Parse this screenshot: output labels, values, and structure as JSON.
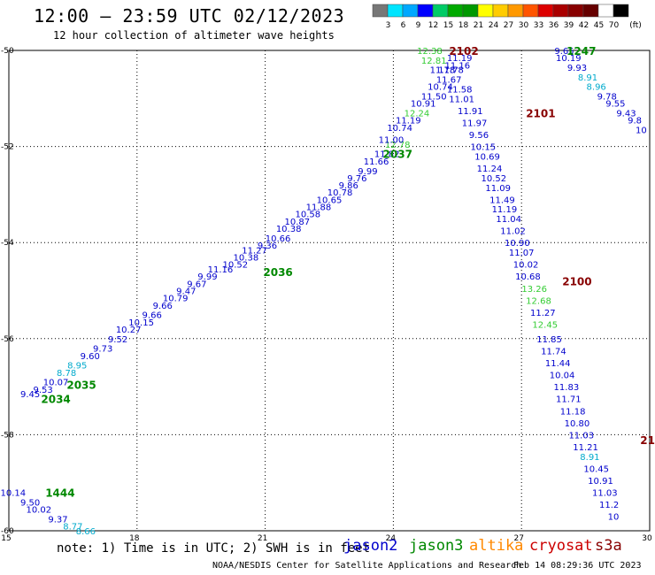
{
  "header": {
    "title": "12:00 – 23:59 UTC 02/12/2023",
    "subtitle": "12 hour collection of altimeter wave heights"
  },
  "colorbar": {
    "unit": "(ft)",
    "ticks": [
      "3",
      "6",
      "9",
      "12",
      "15",
      "18",
      "21",
      "24",
      "27",
      "30",
      "33",
      "36",
      "39",
      "42",
      "45",
      "70"
    ],
    "colors": [
      "#777777",
      "#00e5ff",
      "#00a8ff",
      "#0000ff",
      "#00cc66",
      "#00aa00",
      "#009900",
      "#ffff00",
      "#ffcc00",
      "#ff9900",
      "#ff5500",
      "#dd0000",
      "#aa0000",
      "#880000",
      "#660000",
      "#ffffff",
      "#000000"
    ]
  },
  "axes": {
    "x_ticks": [
      "15",
      "18",
      "21",
      "24",
      "27",
      "30"
    ],
    "y_ticks": [
      "-50",
      "-52",
      "-54",
      "-56",
      "-58",
      "-60"
    ]
  },
  "footer": {
    "note": "note: 1) Time is in UTC; 2) SWH is in feet",
    "satellites": [
      "jason2",
      "jason3",
      "altika",
      "cryosat",
      "s3a"
    ],
    "credit": "NOAA/NESDIS Center for Satellite Applications and Research",
    "timestamp": "Feb 14 08:29:36 UTC 2023"
  },
  "map": {
    "time_labels": [
      {
        "text": "2102",
        "x": 25.65,
        "y": -50.0,
        "color": "#880000"
      },
      {
        "text": "2101",
        "x": 27.45,
        "y": -51.3,
        "color": "#880000"
      },
      {
        "text": "2100",
        "x": 28.3,
        "y": -54.8,
        "color": "#880000"
      },
      {
        "text": "1247",
        "x": 28.4,
        "y": -50.0,
        "color": "#008800"
      },
      {
        "text": "2037",
        "x": 24.1,
        "y": -52.15,
        "color": "#008800"
      },
      {
        "text": "2036",
        "x": 21.3,
        "y": -54.6,
        "color": "#008800"
      },
      {
        "text": "2035",
        "x": 16.7,
        "y": -56.95,
        "color": "#008800"
      },
      {
        "text": "2034",
        "x": 16.1,
        "y": -57.25,
        "color": "#008800"
      },
      {
        "text": "1444",
        "x": 16.2,
        "y": -59.2,
        "color": "#008800"
      },
      {
        "text": "21",
        "x": 29.95,
        "y": -58.1,
        "color": "#880000"
      }
    ],
    "points": [
      {
        "v": "9.45",
        "x": 15.5,
        "y": -57.15,
        "c": "#0000cc"
      },
      {
        "v": "9.53",
        "x": 15.8,
        "y": -57.05,
        "c": "#0000cc"
      },
      {
        "v": "10.07",
        "x": 16.1,
        "y": -56.9,
        "c": "#0000cc"
      },
      {
        "v": "8.78",
        "x": 16.35,
        "y": -56.7,
        "c": "#00aacc"
      },
      {
        "v": "8.95",
        "x": 16.6,
        "y": -56.55,
        "c": "#00aacc"
      },
      {
        "v": "9.60",
        "x": 16.9,
        "y": -56.35,
        "c": "#0000cc"
      },
      {
        "v": "9.73",
        "x": 17.2,
        "y": -56.2,
        "c": "#0000cc"
      },
      {
        "v": "9.52",
        "x": 17.55,
        "y": -56.0,
        "c": "#0000cc"
      },
      {
        "v": "10.27",
        "x": 17.8,
        "y": -55.8,
        "c": "#0000cc"
      },
      {
        "v": "10.15",
        "x": 18.1,
        "y": -55.65,
        "c": "#0000cc"
      },
      {
        "v": "9.66",
        "x": 18.35,
        "y": -55.5,
        "c": "#0000cc"
      },
      {
        "v": "9.66",
        "x": 18.6,
        "y": -55.3,
        "c": "#0000cc"
      },
      {
        "v": "10.79",
        "x": 18.9,
        "y": -55.15,
        "c": "#0000cc"
      },
      {
        "v": "9.47",
        "x": 19.15,
        "y": -55.0,
        "c": "#0000cc"
      },
      {
        "v": "9.67",
        "x": 19.4,
        "y": -54.85,
        "c": "#0000cc"
      },
      {
        "v": "9.99",
        "x": 19.65,
        "y": -54.7,
        "c": "#0000cc"
      },
      {
        "v": "11.16",
        "x": 19.95,
        "y": -54.55,
        "c": "#0000cc"
      },
      {
        "v": "10.52",
        "x": 20.3,
        "y": -54.45,
        "c": "#0000cc"
      },
      {
        "v": "10.38",
        "x": 20.55,
        "y": -54.3,
        "c": "#0000cc"
      },
      {
        "v": "11.27",
        "x": 20.75,
        "y": -54.15,
        "c": "#0000cc"
      },
      {
        "v": "9.36",
        "x": 21.05,
        "y": -54.05,
        "c": "#0000cc"
      },
      {
        "v": "10.66",
        "x": 21.3,
        "y": -53.9,
        "c": "#0000cc"
      },
      {
        "v": "10.38",
        "x": 21.55,
        "y": -53.7,
        "c": "#0000cc"
      },
      {
        "v": "10.87",
        "x": 21.75,
        "y": -53.55,
        "c": "#0000cc"
      },
      {
        "v": "10.58",
        "x": 22.0,
        "y": -53.4,
        "c": "#0000cc"
      },
      {
        "v": "11.88",
        "x": 22.25,
        "y": -53.25,
        "c": "#0000cc"
      },
      {
        "v": "10.65",
        "x": 22.5,
        "y": -53.1,
        "c": "#0000cc"
      },
      {
        "v": "10.78",
        "x": 22.75,
        "y": -52.95,
        "c": "#0000cc"
      },
      {
        "v": "9.86",
        "x": 22.95,
        "y": -52.8,
        "c": "#0000cc"
      },
      {
        "v": "9.76",
        "x": 23.15,
        "y": -52.65,
        "c": "#0000cc"
      },
      {
        "v": "9.99",
        "x": 23.4,
        "y": -52.5,
        "c": "#0000cc"
      },
      {
        "v": "11.66",
        "x": 23.6,
        "y": -52.3,
        "c": "#0000cc"
      },
      {
        "v": "11.82",
        "x": 23.85,
        "y": -52.15,
        "c": "#0000cc"
      },
      {
        "v": "12.78",
        "x": 24.1,
        "y": -51.95,
        "c": "#33cc33"
      },
      {
        "v": "11.00",
        "x": 23.95,
        "y": -51.85,
        "c": "#0000cc"
      },
      {
        "v": "10.74",
        "x": 24.15,
        "y": -51.6,
        "c": "#0000cc"
      },
      {
        "v": "11.19",
        "x": 24.35,
        "y": -51.45,
        "c": "#0000cc"
      },
      {
        "v": "12.24",
        "x": 24.55,
        "y": -51.3,
        "c": "#33cc33"
      },
      {
        "v": "10.91",
        "x": 24.7,
        "y": -51.1,
        "c": "#0000cc"
      },
      {
        "v": "11.50",
        "x": 24.95,
        "y": -50.95,
        "c": "#0000cc"
      },
      {
        "v": "10.74",
        "x": 25.1,
        "y": -50.75,
        "c": "#0000cc"
      },
      {
        "v": "11.67",
        "x": 25.3,
        "y": -50.6,
        "c": "#0000cc"
      },
      {
        "v": "11.78",
        "x": 25.35,
        "y": -50.4,
        "c": "#0000cc"
      },
      {
        "v": "11.78",
        "x": 25.15,
        "y": -50.4,
        "c": "#0000cc"
      },
      {
        "v": "12.81",
        "x": 24.95,
        "y": -50.2,
        "c": "#33cc33"
      },
      {
        "v": "12.38",
        "x": 24.85,
        "y": -50.0,
        "c": "#33cc33"
      },
      {
        "v": "11.16",
        "x": 25.5,
        "y": -50.3,
        "c": "#0000cc"
      },
      {
        "v": "11.19",
        "x": 25.55,
        "y": -50.15,
        "c": "#0000cc"
      },
      {
        "v": "11.58",
        "x": 25.55,
        "y": -50.8,
        "c": "#0000cc"
      },
      {
        "v": "11.01",
        "x": 25.6,
        "y": -51.0,
        "c": "#0000cc"
      },
      {
        "v": "11.91",
        "x": 25.8,
        "y": -51.25,
        "c": "#0000cc"
      },
      {
        "v": "11.97",
        "x": 25.9,
        "y": -51.5,
        "c": "#0000cc"
      },
      {
        "v": "9.56",
        "x": 26.0,
        "y": -51.75,
        "c": "#0000cc"
      },
      {
        "v": "10.15",
        "x": 26.1,
        "y": -52.0,
        "c": "#0000cc"
      },
      {
        "v": "10.69",
        "x": 26.2,
        "y": -52.2,
        "c": "#0000cc"
      },
      {
        "v": "11.24",
        "x": 26.25,
        "y": -52.45,
        "c": "#0000cc"
      },
      {
        "v": "10.52",
        "x": 26.35,
        "y": -52.65,
        "c": "#0000cc"
      },
      {
        "v": "11.09",
        "x": 26.45,
        "y": -52.85,
        "c": "#0000cc"
      },
      {
        "v": "11.49",
        "x": 26.55,
        "y": -53.1,
        "c": "#0000cc"
      },
      {
        "v": "11.19",
        "x": 26.6,
        "y": -53.3,
        "c": "#0000cc"
      },
      {
        "v": "11.04",
        "x": 26.7,
        "y": -53.5,
        "c": "#0000cc"
      },
      {
        "v": "11.02",
        "x": 26.8,
        "y": -53.75,
        "c": "#0000cc"
      },
      {
        "v": "10.90",
        "x": 26.9,
        "y": -54.0,
        "c": "#0000cc"
      },
      {
        "v": "11.07",
        "x": 27.0,
        "y": -54.2,
        "c": "#0000cc"
      },
      {
        "v": "10.02",
        "x": 27.1,
        "y": -54.45,
        "c": "#0000cc"
      },
      {
        "v": "10.68",
        "x": 27.15,
        "y": -54.7,
        "c": "#0000cc"
      },
      {
        "v": "13.26",
        "x": 27.3,
        "y": -54.95,
        "c": "#33cc33"
      },
      {
        "v": "12.68",
        "x": 27.4,
        "y": -55.2,
        "c": "#33cc33"
      },
      {
        "v": "11.27",
        "x": 27.5,
        "y": -55.45,
        "c": "#0000cc"
      },
      {
        "v": "12.45",
        "x": 27.55,
        "y": -55.7,
        "c": "#33cc33"
      },
      {
        "v": "11.85",
        "x": 27.65,
        "y": -56.0,
        "c": "#0000cc"
      },
      {
        "v": "11.74",
        "x": 27.75,
        "y": -56.25,
        "c": "#0000cc"
      },
      {
        "v": "11.44",
        "x": 27.85,
        "y": -56.5,
        "c": "#0000cc"
      },
      {
        "v": "10.04",
        "x": 27.95,
        "y": -56.75,
        "c": "#0000cc"
      },
      {
        "v": "11.83",
        "x": 28.05,
        "y": -57.0,
        "c": "#0000cc"
      },
      {
        "v": "11.71",
        "x": 28.1,
        "y": -57.25,
        "c": "#0000cc"
      },
      {
        "v": "11.18",
        "x": 28.2,
        "y": -57.5,
        "c": "#0000cc"
      },
      {
        "v": "10.80",
        "x": 28.3,
        "y": -57.75,
        "c": "#0000cc"
      },
      {
        "v": "11.03",
        "x": 28.4,
        "y": -58.0,
        "c": "#0000cc"
      },
      {
        "v": "11.21",
        "x": 28.5,
        "y": -58.25,
        "c": "#0000cc"
      },
      {
        "v": "8.91",
        "x": 28.6,
        "y": -58.45,
        "c": "#00aacc"
      },
      {
        "v": "10.45",
        "x": 28.75,
        "y": -58.7,
        "c": "#0000cc"
      },
      {
        "v": "10.91",
        "x": 28.85,
        "y": -58.95,
        "c": "#0000cc"
      },
      {
        "v": "11.03",
        "x": 28.95,
        "y": -59.2,
        "c": "#0000cc"
      },
      {
        "v": "11.2",
        "x": 29.05,
        "y": -59.45,
        "c": "#0000cc"
      },
      {
        "v": "10",
        "x": 29.15,
        "y": -59.7,
        "c": "#0000cc"
      },
      {
        "v": "9.65",
        "x": 28.0,
        "y": -50.0,
        "c": "#0000cc"
      },
      {
        "v": "10.19",
        "x": 28.1,
        "y": -50.15,
        "c": "#0000cc"
      },
      {
        "v": "9.93",
        "x": 28.3,
        "y": -50.35,
        "c": "#0000cc"
      },
      {
        "v": "8.91",
        "x": 28.55,
        "y": -50.55,
        "c": "#00aacc"
      },
      {
        "v": "8.96",
        "x": 28.75,
        "y": -50.75,
        "c": "#00aacc"
      },
      {
        "v": "9.78",
        "x": 29.0,
        "y": -50.95,
        "c": "#0000cc"
      },
      {
        "v": "9.55",
        "x": 29.2,
        "y": -51.1,
        "c": "#0000cc"
      },
      {
        "v": "9.43",
        "x": 29.45,
        "y": -51.3,
        "c": "#0000cc"
      },
      {
        "v": "9.8",
        "x": 29.65,
        "y": -51.45,
        "c": "#0000cc"
      },
      {
        "v": "10",
        "x": 29.8,
        "y": -51.65,
        "c": "#0000cc"
      },
      {
        "v": "10.14",
        "x": 15.1,
        "y": -59.2,
        "c": "#0000cc"
      },
      {
        "v": "9.50",
        "x": 15.5,
        "y": -59.4,
        "c": "#0000cc"
      },
      {
        "v": "10.02",
        "x": 15.7,
        "y": -59.55,
        "c": "#0000cc"
      },
      {
        "v": "9.37",
        "x": 16.15,
        "y": -59.75,
        "c": "#0000cc"
      },
      {
        "v": "8.77",
        "x": 16.5,
        "y": -59.9,
        "c": "#00aacc"
      },
      {
        "v": "8.66",
        "x": 16.8,
        "y": -60.0,
        "c": "#00aacc"
      }
    ]
  }
}
